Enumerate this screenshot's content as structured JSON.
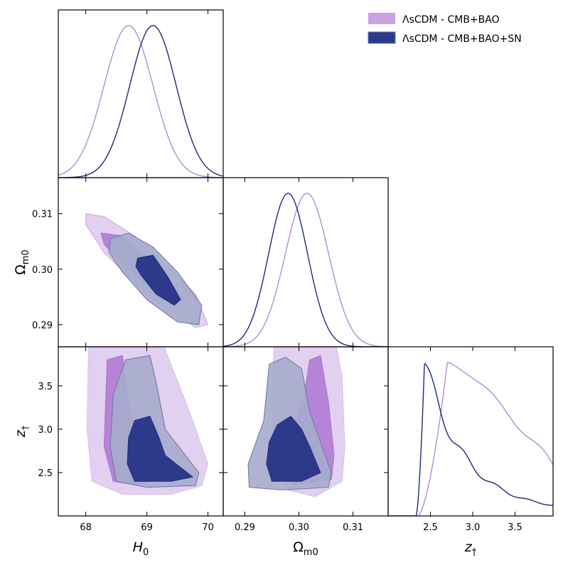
{
  "chart_data": {
    "type": "triangle",
    "parameters": [
      {
        "name": "H0",
        "label_main": "H",
        "label_sub": "0",
        "ticks": [
          68,
          69,
          70
        ],
        "tick_labels": [
          "68",
          "69",
          "70"
        ]
      },
      {
        "name": "Om",
        "label_main": "Ω",
        "label_sub": "m0",
        "ticks": [
          0.29,
          0.3,
          0.31
        ],
        "tick_labels": [
          "0.29",
          "0.30",
          "0.31"
        ]
      },
      {
        "name": "zd",
        "label_main": "z",
        "label_sub": "†",
        "ticks": [
          2.5,
          3.0,
          3.5
        ],
        "tick_labels": [
          "2.5",
          "3.0",
          "3.5"
        ]
      }
    ],
    "ranges": {
      "H0": [
        67.55,
        70.25
      ],
      "Om": [
        0.286,
        0.3165
      ],
      "zd": [
        2.0,
        3.95
      ]
    },
    "legend_position": "top-right",
    "series": [
      {
        "name": "ΛsCDM - CMB+BAO",
        "color": "#b584d9",
        "line": "#b58ad8",
        "inner": "#b584d9",
        "outer": "#e2d0f0",
        "H0": {
          "mean": 68.7,
          "sigma": 0.4
        },
        "Om": {
          "mean": 0.3015,
          "sigma": 0.004
        },
        "zd": {
          "peak": 2.7,
          "start": 2.35,
          "end_value": 0.31
        }
      },
      {
        "name": "ΛsCDM - CMB+BAO+SN",
        "color": "#2d3a8c",
        "line": "#1f2a7a",
        "inner": "#2d3a8c",
        "outer": "#a6abcc",
        "H0": {
          "mean": 69.1,
          "sigma": 0.38
        },
        "Om": {
          "mean": 0.298,
          "sigma": 0.0036
        },
        "zd": {
          "peak": 2.43,
          "start": 2.33,
          "end_value": 0.03
        }
      }
    ]
  }
}
